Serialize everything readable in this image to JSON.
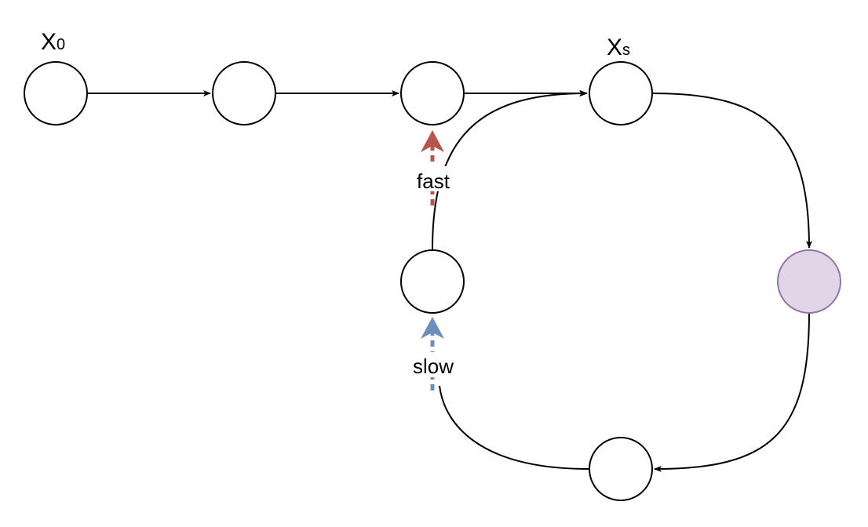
{
  "nodes": {
    "x0": {
      "label_main": "X",
      "label_sub": "0"
    },
    "xs": {
      "label_main": "X",
      "label_sub": "s"
    }
  },
  "pointers": {
    "fast": {
      "label": "fast",
      "color": "#b85450"
    },
    "slow": {
      "label": "slow",
      "color": "#6c8ebf"
    }
  },
  "colors": {
    "highlight_fill": "#e1d5e7",
    "highlight_stroke": "#9673a6",
    "edge": "#000000"
  }
}
